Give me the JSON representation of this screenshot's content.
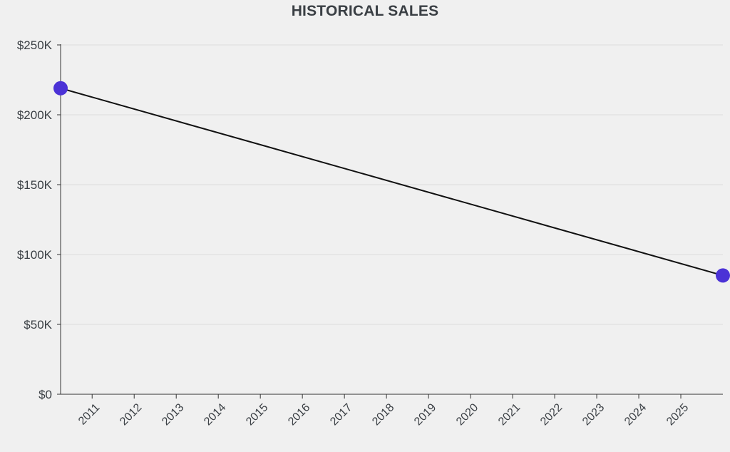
{
  "chart_data": {
    "type": "line",
    "title": "HISTORICAL SALES",
    "xlabel": "",
    "ylabel": "",
    "x_ticks": [
      "2011",
      "2012",
      "2013",
      "2014",
      "2015",
      "2016",
      "2017",
      "2018",
      "2019",
      "2020",
      "2021",
      "2022",
      "2023",
      "2024",
      "2025"
    ],
    "y_ticks": [
      "$0",
      "$50K",
      "$100K",
      "$150K",
      "$200K",
      "$250K"
    ],
    "y_tick_values": [
      0,
      50000,
      100000,
      150000,
      200000,
      250000
    ],
    "ylim": [
      0,
      250000
    ],
    "xlim": [
      "2010-04",
      "2026-01"
    ],
    "grid": "horizontal",
    "series": [
      {
        "x": [
          "2010-04",
          "2026-01"
        ],
        "values": [
          219000,
          85000
        ],
        "line_color": "#111111",
        "marker_color": "#4b32d6"
      }
    ]
  }
}
